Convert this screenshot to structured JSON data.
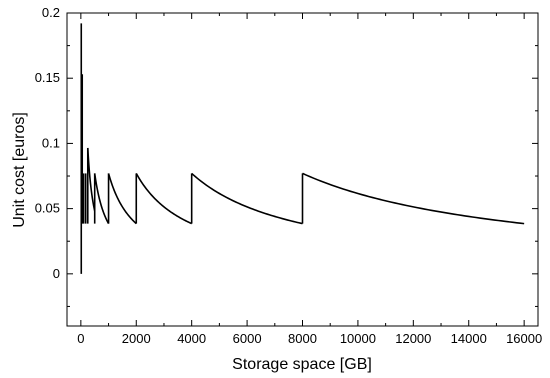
{
  "chart_data": {
    "type": "line",
    "title": "",
    "xlabel": "Storage space [GB]",
    "ylabel": "Unit cost [euros]",
    "xlim": [
      -500,
      16500
    ],
    "ylim": [
      -0.04,
      0.2
    ],
    "grid": false,
    "x_ticks": [
      0,
      2000,
      4000,
      6000,
      8000,
      10000,
      12000,
      14000,
      16000
    ],
    "x_tick_labels": [
      "0",
      "2000",
      "4000",
      "6000",
      "8000",
      "10000",
      "12000",
      "14000",
      "16000"
    ],
    "y_ticks": [
      0,
      0.05,
      0.1,
      0.15,
      0.2
    ],
    "y_tick_labels": [
      "0",
      "0.05",
      "0.1",
      "0.15",
      "0.2"
    ],
    "series": [
      {
        "color": "#000000",
        "segments": [
          {
            "x0": 10,
            "x1": 10,
            "y0": 0.0,
            "y1": 0.0,
            "vertical_to": 0.192,
            "note_vertical": true
          },
          {
            "x0": 250,
            "x1": 500,
            "y0": 0.0965,
            "y1": 0.0385
          },
          {
            "x0": 500,
            "x1": 1000,
            "y0": 0.077,
            "y1": 0.0385
          },
          {
            "x0": 1000,
            "x1": 2000,
            "y0": 0.077,
            "y1": 0.0385
          },
          {
            "x0": 2000,
            "x1": 4000,
            "y0": 0.077,
            "y1": 0.0385
          },
          {
            "x0": 4000,
            "x1": 8000,
            "y0": 0.077,
            "y1": 0.0385
          },
          {
            "x0": 8000,
            "x1": 16000,
            "y0": 0.077,
            "y1": 0.0385
          }
        ],
        "small_x_spikes": [
          {
            "x": 15,
            "ymin": 0.0,
            "ymax": 0.192
          },
          {
            "x": 50,
            "ymin": 0.0385,
            "ymax": 0.153
          },
          {
            "x": 100,
            "ymin": 0.0385,
            "ymax": 0.077
          },
          {
            "x": 175,
            "ymin": 0.0385,
            "ymax": 0.077
          },
          {
            "x": 250,
            "ymin": 0.0385,
            "ymax": 0.0965
          }
        ]
      }
    ]
  }
}
